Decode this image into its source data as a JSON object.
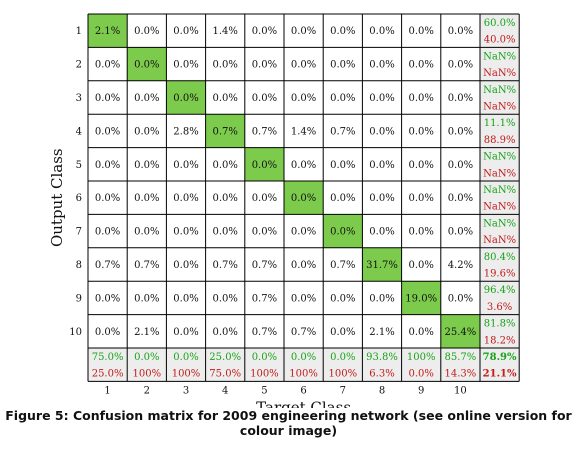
{
  "chart_data": {
    "type": "heatmap",
    "xlabel": "Target Class",
    "ylabel": "Output Class",
    "classes": [
      "1",
      "2",
      "3",
      "4",
      "5",
      "6",
      "7",
      "8",
      "9",
      "10"
    ],
    "cells": [
      [
        "2.1%",
        "0.0%",
        "0.0%",
        "1.4%",
        "0.0%",
        "0.0%",
        "0.0%",
        "0.0%",
        "0.0%",
        "0.0%"
      ],
      [
        "0.0%",
        "0.0%",
        "0.0%",
        "0.0%",
        "0.0%",
        "0.0%",
        "0.0%",
        "0.0%",
        "0.0%",
        "0.0%"
      ],
      [
        "0.0%",
        "0.0%",
        "0.0%",
        "0.0%",
        "0.0%",
        "0.0%",
        "0.0%",
        "0.0%",
        "0.0%",
        "0.0%"
      ],
      [
        "0.0%",
        "0.0%",
        "2.8%",
        "0.7%",
        "0.7%",
        "1.4%",
        "0.7%",
        "0.0%",
        "0.0%",
        "0.0%"
      ],
      [
        "0.0%",
        "0.0%",
        "0.0%",
        "0.0%",
        "0.0%",
        "0.0%",
        "0.0%",
        "0.0%",
        "0.0%",
        "0.0%"
      ],
      [
        "0.0%",
        "0.0%",
        "0.0%",
        "0.0%",
        "0.0%",
        "0.0%",
        "0.0%",
        "0.0%",
        "0.0%",
        "0.0%"
      ],
      [
        "0.0%",
        "0.0%",
        "0.0%",
        "0.0%",
        "0.0%",
        "0.0%",
        "0.0%",
        "0.0%",
        "0.0%",
        "0.0%"
      ],
      [
        "0.7%",
        "0.7%",
        "0.0%",
        "0.7%",
        "0.7%",
        "0.0%",
        "0.7%",
        "31.7%",
        "0.0%",
        "4.2%"
      ],
      [
        "0.0%",
        "0.0%",
        "0.0%",
        "0.0%",
        "0.7%",
        "0.0%",
        "0.0%",
        "0.0%",
        "19.0%",
        "0.0%"
      ],
      [
        "0.0%",
        "2.1%",
        "0.0%",
        "0.0%",
        "0.7%",
        "0.7%",
        "0.0%",
        "2.1%",
        "0.0%",
        "25.4%"
      ]
    ],
    "row_summary": [
      {
        "correct": "60.0%",
        "incorrect": "40.0%"
      },
      {
        "correct": "NaN%",
        "incorrect": "NaN%"
      },
      {
        "correct": "NaN%",
        "incorrect": "NaN%"
      },
      {
        "correct": "11.1%",
        "incorrect": "88.9%"
      },
      {
        "correct": "NaN%",
        "incorrect": "NaN%"
      },
      {
        "correct": "NaN%",
        "incorrect": "NaN%"
      },
      {
        "correct": "NaN%",
        "incorrect": "NaN%"
      },
      {
        "correct": "80.4%",
        "incorrect": "19.6%"
      },
      {
        "correct": "96.4%",
        "incorrect": "3.6%"
      },
      {
        "correct": "81.8%",
        "incorrect": "18.2%"
      }
    ],
    "column_summary": [
      {
        "correct": "75.0%",
        "incorrect": "25.0%"
      },
      {
        "correct": "0.0%",
        "incorrect": "100%"
      },
      {
        "correct": "0.0%",
        "incorrect": "100%"
      },
      {
        "correct": "25.0%",
        "incorrect": "75.0%"
      },
      {
        "correct": "0.0%",
        "incorrect": "100%"
      },
      {
        "correct": "0.0%",
        "incorrect": "100%"
      },
      {
        "correct": "0.0%",
        "incorrect": "100%"
      },
      {
        "correct": "93.8%",
        "incorrect": "6.3%"
      },
      {
        "correct": "100%",
        "incorrect": "0.0%"
      },
      {
        "correct": "85.7%",
        "incorrect": "14.3%"
      }
    ],
    "overall": {
      "correct": "78.9%",
      "incorrect": "21.1%"
    },
    "colors": {
      "diagonal": "#7dcb4c",
      "summary_bg": "#ededed",
      "correct_text": "#17a317",
      "incorrect_text": "#c21a1a",
      "grid": "#000000"
    }
  },
  "caption": "Figure 5: Confusion matrix for 2009 engineering network (see online version for colour image)"
}
